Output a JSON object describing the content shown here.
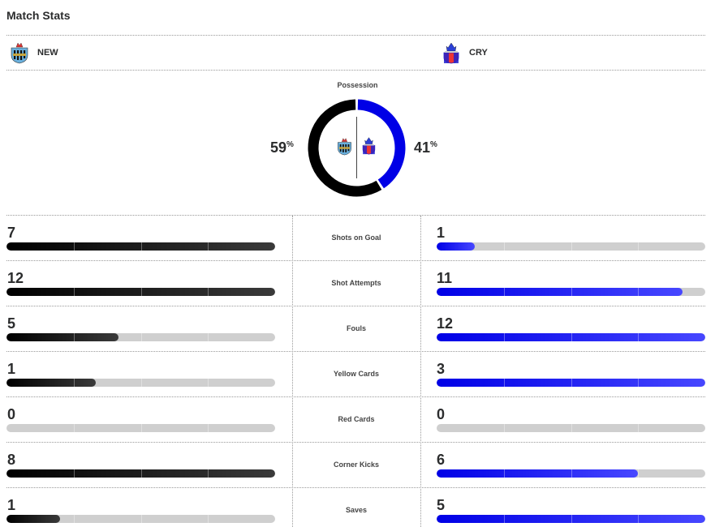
{
  "header": {
    "title": "Match Stats"
  },
  "teams": {
    "home": {
      "abbr": "NEW",
      "logo_icon": "newcastle-crest-icon",
      "color": "#000000"
    },
    "away": {
      "abbr": "CRY",
      "logo_icon": "crystal-palace-crest-icon",
      "color": "#0000e6"
    }
  },
  "possession": {
    "label": "Possession",
    "home": 59,
    "away": 41,
    "home_text": "59",
    "away_text": "41",
    "unit": "%"
  },
  "stats": [
    {
      "label": "Shots on Goal",
      "home": 7,
      "away": 1,
      "home_text": "7",
      "away_text": "1"
    },
    {
      "label": "Shot Attempts",
      "home": 12,
      "away": 11,
      "home_text": "12",
      "away_text": "11"
    },
    {
      "label": "Fouls",
      "home": 5,
      "away": 12,
      "home_text": "5",
      "away_text": "12"
    },
    {
      "label": "Yellow Cards",
      "home": 1,
      "away": 3,
      "home_text": "1",
      "away_text": "3"
    },
    {
      "label": "Red Cards",
      "home": 0,
      "away": 0,
      "home_text": "0",
      "away_text": "0"
    },
    {
      "label": "Corner Kicks",
      "home": 8,
      "away": 6,
      "home_text": "8",
      "away_text": "6"
    },
    {
      "label": "Saves",
      "home": 1,
      "away": 5,
      "home_text": "1",
      "away_text": "5"
    }
  ]
}
